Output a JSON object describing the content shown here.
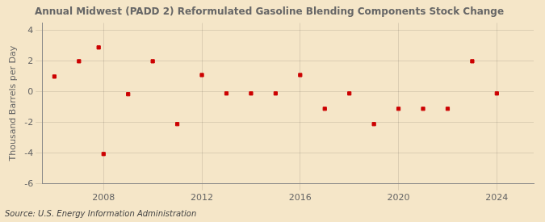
{
  "chart_data": {
    "type": "scatter",
    "title": "Annual Midwest (PADD 2) Reformulated Gasoline Blending Components Stock Change",
    "ylabel": "Thousand Barrels per Day",
    "annotation": "Source: U.S. Energy Information Administration",
    "x": [
      2006,
      2007,
      2007.8,
      2008,
      2009,
      2010,
      2011,
      2012,
      2013,
      2014,
      2015,
      2016,
      2017,
      2018,
      2019,
      2020,
      2021,
      2022,
      2023,
      2024
    ],
    "values": [
      1.0,
      2.0,
      2.9,
      -4.05,
      -0.15,
      2.0,
      -2.1,
      1.1,
      -0.1,
      -0.1,
      -0.1,
      1.1,
      -1.1,
      -0.1,
      -2.1,
      -1.1,
      -1.1,
      -1.1,
      2.0,
      -0.1
    ],
    "color": "#cc0000",
    "marker": "square",
    "xlim": [
      2005.5,
      2025.5
    ],
    "ylim": [
      -6,
      4.5
    ],
    "xticks": [
      2008,
      2012,
      2016,
      2020,
      2024
    ],
    "yticks": [
      -6,
      -4,
      -2,
      0,
      2,
      4
    ],
    "grid": true
  }
}
